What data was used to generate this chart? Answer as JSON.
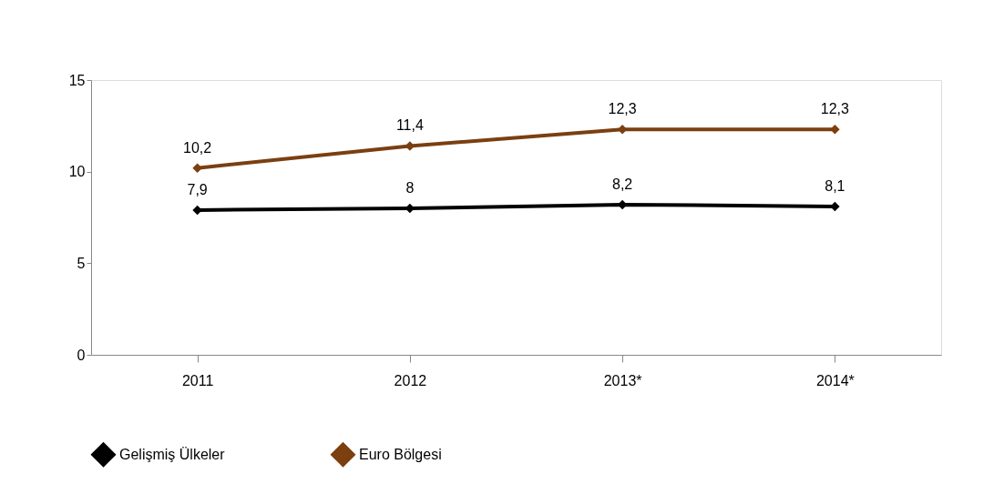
{
  "chart_data": {
    "type": "line",
    "categories": [
      "2011",
      "2012",
      "2013*",
      "2014*"
    ],
    "series": [
      {
        "name": "Gelişmiş Ülkeler",
        "color": "#000000",
        "values": [
          7.9,
          8,
          8.2,
          8.1
        ],
        "value_labels": [
          "7,9",
          "8",
          "8,2",
          "8,1"
        ]
      },
      {
        "name": "Euro Bölgesi",
        "color": "#7b3f10",
        "values": [
          10.2,
          11.4,
          12.3,
          12.3
        ],
        "value_labels": [
          "10,2",
          "11,4",
          "12,3",
          "12,3"
        ]
      }
    ],
    "ylim": [
      0,
      15
    ],
    "yticks": [
      0,
      5,
      10,
      15
    ],
    "grid": false,
    "legend": "bottom",
    "marker": "diamond",
    "line_style": "solid"
  }
}
